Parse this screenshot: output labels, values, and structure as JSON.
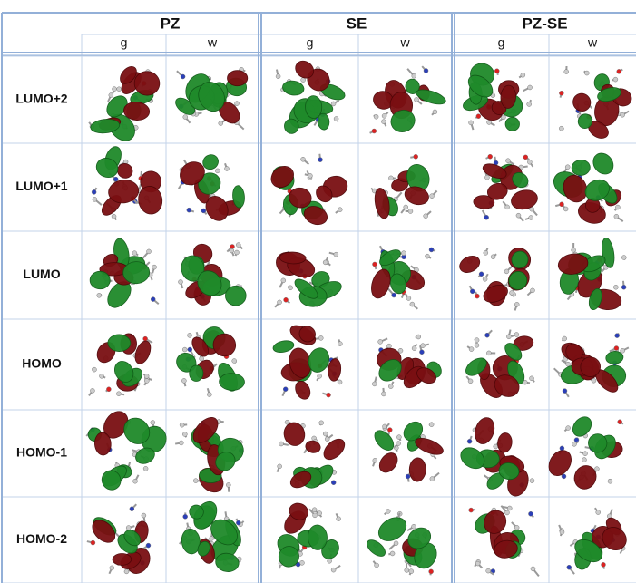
{
  "table": {
    "groups": [
      "PZ",
      "SE",
      "PZ-SE"
    ],
    "subheaders": [
      "g",
      "w",
      "g",
      "w",
      "g",
      "w"
    ],
    "rows": [
      "LUMO+2",
      "LUMO+1",
      "LUMO",
      "HOMO",
      "HOMO-1",
      "HOMO-2"
    ]
  }
}
